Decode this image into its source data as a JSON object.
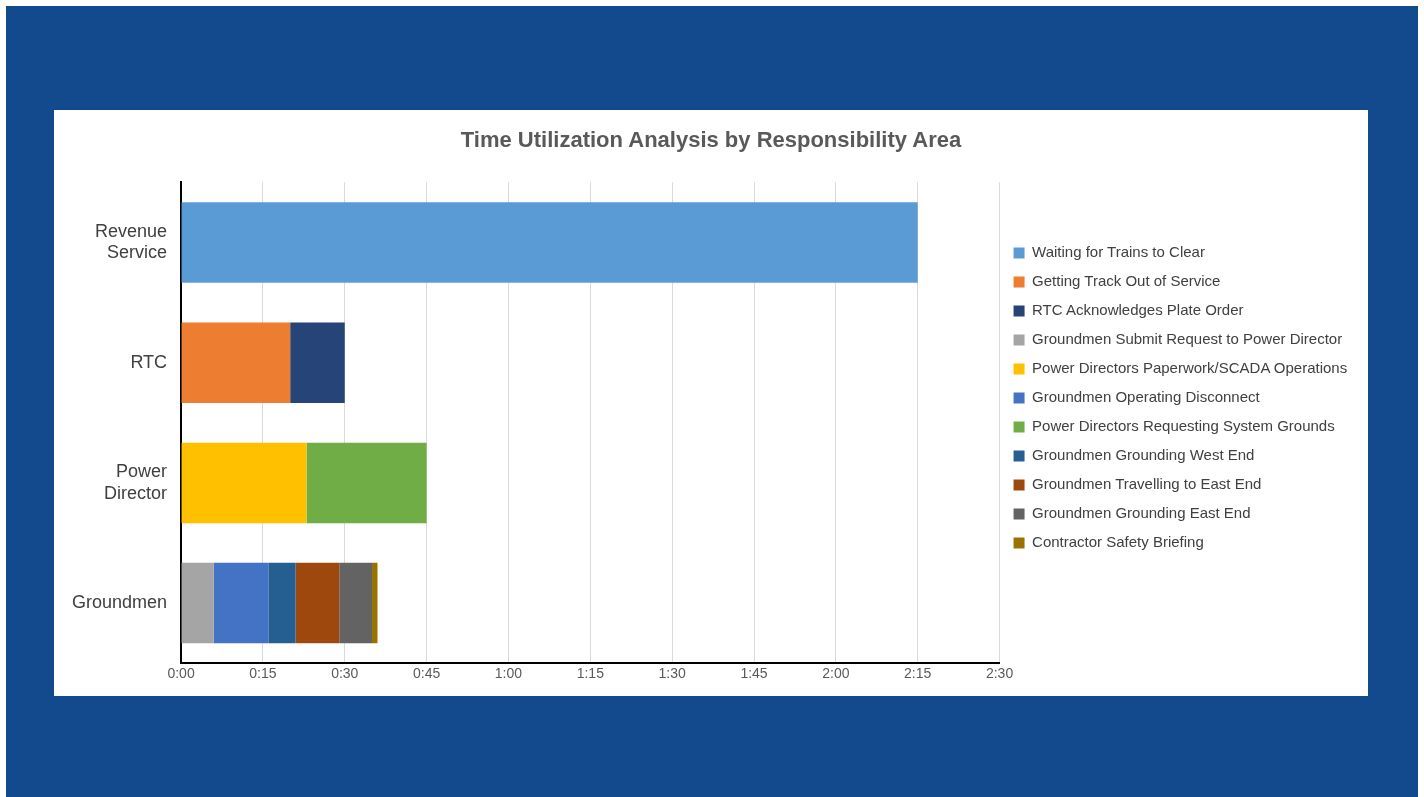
{
  "chart_data": {
    "type": "bar",
    "orientation": "horizontal",
    "stacked": true,
    "title": "Time Utilization Analysis by Responsibility Area",
    "categories": [
      "Revenue Service",
      "RTC",
      "Power Director",
      "Groundmen"
    ],
    "series": [
      {
        "name": "Waiting for Trains to Clear",
        "color": "#5b9bd5",
        "values": [
          135,
          null,
          null,
          null
        ]
      },
      {
        "name": "Getting Track Out of Service",
        "color": "#ed7d31",
        "values": [
          null,
          20,
          null,
          null
        ]
      },
      {
        "name": "RTC Acknowledges Plate Order",
        "color": "#264478",
        "values": [
          null,
          10,
          null,
          null
        ]
      },
      {
        "name": "Groundmen Submit Request to Power Director",
        "color": "#a5a5a5",
        "values": [
          null,
          null,
          null,
          6
        ]
      },
      {
        "name": "Power Directors Paperwork/SCADA Operations",
        "color": "#ffc000",
        "values": [
          null,
          null,
          23,
          null
        ]
      },
      {
        "name": "Groundmen Operating Disconnect",
        "color": "#4472c4",
        "values": [
          null,
          null,
          null,
          10
        ]
      },
      {
        "name": "Power Directors Requesting System Grounds",
        "color": "#70ad47",
        "values": [
          null,
          null,
          22,
          null
        ]
      },
      {
        "name": "Groundmen Grounding West End",
        "color": "#255e91",
        "values": [
          null,
          null,
          null,
          5
        ]
      },
      {
        "name": "Groundmen Travelling to East End",
        "color": "#9e480e",
        "values": [
          null,
          null,
          null,
          8
        ]
      },
      {
        "name": "Groundmen Grounding East End",
        "color": "#636363",
        "values": [
          null,
          null,
          null,
          6
        ]
      },
      {
        "name": "Contractor Safety Briefing",
        "color": "#997300",
        "values": [
          null,
          null,
          null,
          1
        ]
      }
    ],
    "xlim": [
      0,
      150
    ],
    "xticks": [
      {
        "value": 0,
        "label": "0:00"
      },
      {
        "value": 15,
        "label": "0:15"
      },
      {
        "value": 30,
        "label": "0:30"
      },
      {
        "value": 45,
        "label": "0:45"
      },
      {
        "value": 60,
        "label": "1:00"
      },
      {
        "value": 75,
        "label": "1:15"
      },
      {
        "value": 90,
        "label": "1:30"
      },
      {
        "value": 105,
        "label": "1:45"
      },
      {
        "value": 120,
        "label": "2:00"
      },
      {
        "value": 135,
        "label": "2:15"
      },
      {
        "value": 150,
        "label": "2:30"
      }
    ],
    "grid": "x",
    "legend": "right"
  }
}
